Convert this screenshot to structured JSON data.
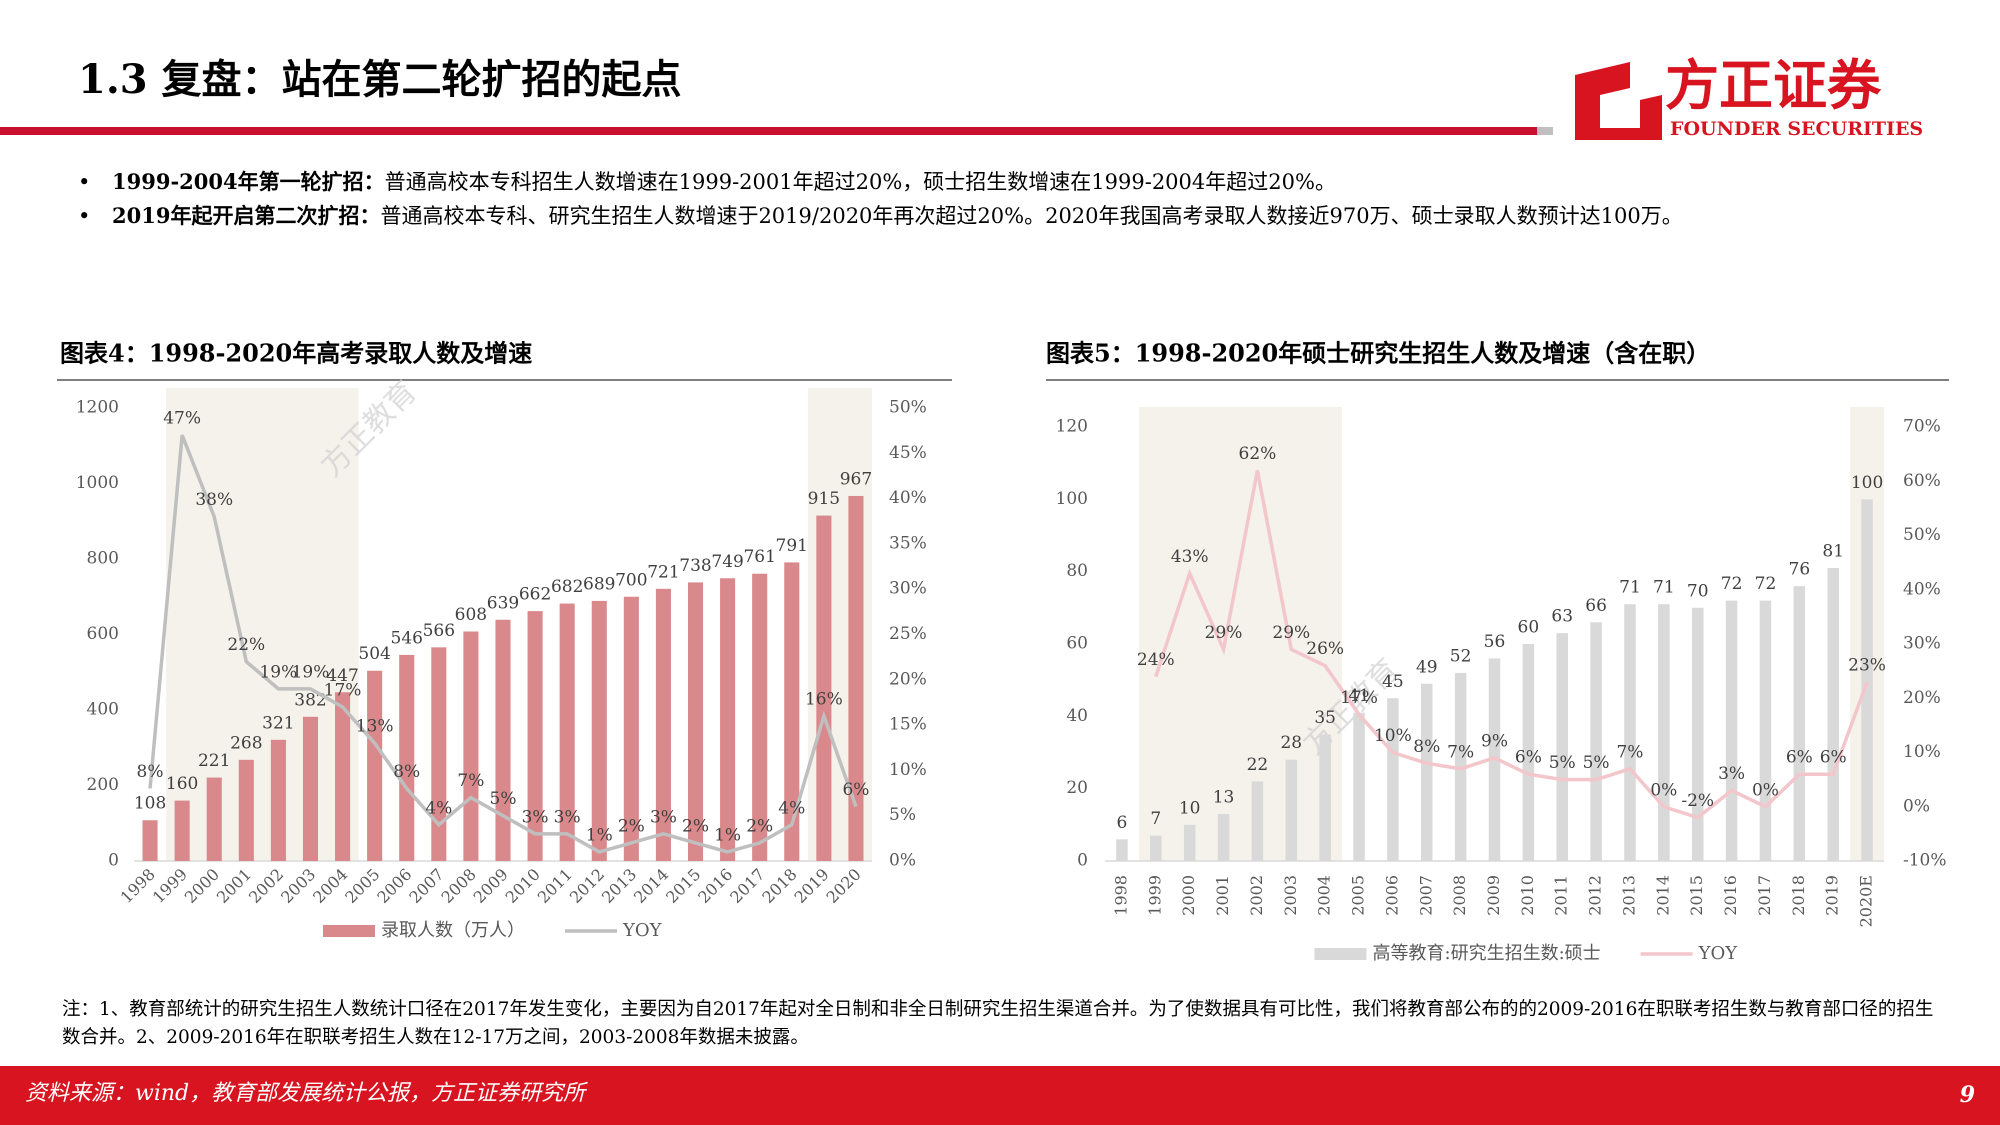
{
  "header": {
    "title": "1.3 复盘：站在第二轮扩招的起点",
    "logo": "方正证券",
    "logo_en": "FOUNDER SECURITIES"
  },
  "bullets": [
    {
      "lead": "1999-2004年第一轮扩招：",
      "text": "普通高校本专科招生人数增速在1999-2001年超过20%，硕士招生数增速在1999-2004年超过20%。"
    },
    {
      "lead": "2019年起开启第二次扩招：",
      "text": "普通高校本专科、研究生招生人数增速于2019/2020年再次超过20%。2020年我国高考录取人数接近970万、硕士录取人数预计达100万。"
    }
  ],
  "watermark": "方正教育",
  "chart_data": [
    {
      "type": "combo",
      "title": "图表4：1998-2020年高考录取人数及增速",
      "categories": [
        "1998",
        "1999",
        "2000",
        "2001",
        "2002",
        "2003",
        "2004",
        "2005",
        "2006",
        "2007",
        "2008",
        "2009",
        "2010",
        "2011",
        "2012",
        "2013",
        "2014",
        "2015",
        "2016",
        "2017",
        "2018",
        "2019",
        "2020"
      ],
      "series": [
        {
          "name": "录取人数（万人）",
          "type": "bar",
          "color": "#d9898b",
          "values": [
            108,
            160,
            221,
            268,
            321,
            382,
            447,
            504,
            546,
            566,
            608,
            639,
            662,
            682,
            689,
            700,
            721,
            738,
            749,
            761,
            791,
            915,
            967
          ]
        },
        {
          "name": "YOY",
          "type": "line",
          "axis": "y2",
          "color": "#bfbfbf",
          "values": [
            8,
            47,
            38,
            22,
            19,
            19,
            17,
            13,
            8,
            4,
            7,
            5,
            3,
            3,
            1,
            2,
            3,
            2,
            1,
            2,
            4,
            16,
            6
          ],
          "value_labels": [
            "8%",
            "47%",
            "38%",
            "22%",
            "19%",
            "19%",
            "17%",
            "13%",
            "8%",
            "4%",
            "7%",
            "5%",
            "3%",
            "3%",
            "1%",
            "2%",
            "3%",
            "2%",
            "1%",
            "2%",
            "4%",
            "16%",
            "6%"
          ]
        }
      ],
      "ylim": [
        0,
        1200
      ],
      "yticks": [
        0,
        200,
        400,
        600,
        800,
        1000,
        1200
      ],
      "y2lim": [
        0,
        50
      ],
      "y2ticks": [
        {
          "value": 0,
          "label": "0%"
        },
        {
          "value": 5,
          "label": "5%"
        },
        {
          "value": 10,
          "label": "10%"
        },
        {
          "value": 15,
          "label": "15%"
        },
        {
          "value": 20,
          "label": "20%"
        },
        {
          "value": 25,
          "label": "25%"
        },
        {
          "value": 30,
          "label": "30%"
        },
        {
          "value": 35,
          "label": "35%"
        },
        {
          "value": 40,
          "label": "40%"
        },
        {
          "value": 45,
          "label": "45%"
        },
        {
          "value": 50,
          "label": "50%"
        }
      ],
      "highlight": [
        [
          "1999",
          "2004"
        ],
        [
          "2019",
          "2020"
        ]
      ],
      "highlight_color": "#f4f2ea"
    },
    {
      "type": "combo",
      "title": "图表5：1998-2020年硕士研究生招生人数及增速（含在职）",
      "categories": [
        "1998",
        "1999",
        "2000",
        "2001",
        "2002",
        "2003",
        "2004",
        "2005",
        "2006",
        "2007",
        "2008",
        "2009",
        "2010",
        "2011",
        "2012",
        "2013",
        "2014",
        "2015",
        "2016",
        "2017",
        "2018",
        "2019",
        "2020E"
      ],
      "series": [
        {
          "name": "高等教育:研究生招生数:硕士",
          "type": "bar",
          "color": "#d9d9d9",
          "values": [
            6,
            7,
            10,
            13,
            22,
            28,
            35,
            41,
            45,
            49,
            52,
            56,
            60,
            63,
            66,
            71,
            71,
            70,
            72,
            72,
            76,
            81,
            100
          ]
        },
        {
          "name": "YOY",
          "type": "line",
          "axis": "y2",
          "color": "#f2c6ca",
          "values": [
            null,
            24,
            43,
            29,
            62,
            29,
            26,
            17,
            10,
            8,
            7,
            9,
            6,
            5,
            5,
            7,
            0,
            -2,
            3,
            0,
            6,
            6,
            23
          ],
          "value_labels": [
            null,
            "24%",
            "43%",
            "29%",
            "62%",
            "29%",
            "26%",
            "17%",
            "10%",
            "8%",
            "7%",
            "9%",
            "6%",
            "5%",
            "5%",
            "7%",
            "0%",
            "-2%",
            "3%",
            "0%",
            "6%",
            "6%",
            "23%"
          ]
        }
      ],
      "ylim": [
        0,
        120
      ],
      "yticks": [
        0,
        20,
        40,
        60,
        80,
        100,
        120
      ],
      "y2lim": [
        -10,
        70
      ],
      "y2ticks": [
        {
          "value": -10,
          "label": "-10%"
        },
        {
          "value": 0,
          "label": "0%"
        },
        {
          "value": 10,
          "label": "10%"
        },
        {
          "value": 20,
          "label": "20%"
        },
        {
          "value": 30,
          "label": "30%"
        },
        {
          "value": 40,
          "label": "40%"
        },
        {
          "value": 50,
          "label": "50%"
        },
        {
          "value": 60,
          "label": "60%"
        },
        {
          "value": 70,
          "label": "70%"
        }
      ],
      "highlight": [
        [
          "1999",
          "2004"
        ],
        [
          "2020E",
          "2020E"
        ]
      ],
      "highlight_color": "#f4f2ea"
    }
  ],
  "note": "注：1、教育部统计的研究生招生人数统计口径在2017年发生变化，主要因为自2017年起对全日制和非全日制研究生招生渠道合并。为了使数据具有可比性，我们将教育部公布的的2009-2016在职联考招生数与教育部口径的招生数合并。2、2009-2016年在职联考招生人数在12-17万之间，2003-2008年数据未披露。",
  "footer": {
    "source": "资料来源：wind，教育部发展统计公报，方正证券研究所",
    "page": "9"
  }
}
